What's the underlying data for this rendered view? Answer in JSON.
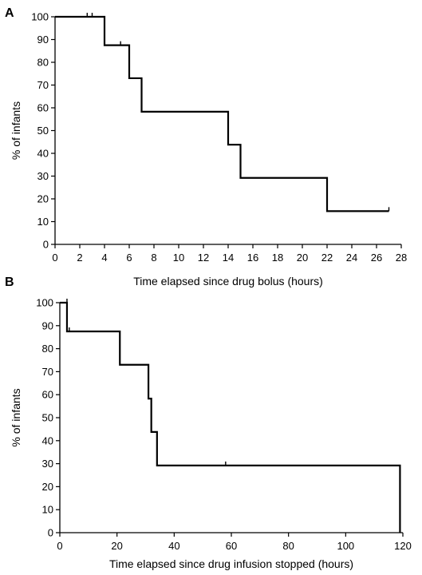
{
  "chart_data": [
    {
      "panel": "A",
      "type": "line",
      "subtype": "kaplan-meier step",
      "xlabel": "Time elapsed since drug bolus (hours)",
      "ylabel": "% of infants",
      "xlim": [
        0,
        28
      ],
      "ylim": [
        0,
        100
      ],
      "xticks": [
        0,
        2,
        4,
        6,
        8,
        10,
        12,
        14,
        16,
        18,
        20,
        22,
        24,
        26,
        28
      ],
      "yticks": [
        0,
        10,
        20,
        30,
        40,
        50,
        60,
        70,
        80,
        90,
        100
      ],
      "grid": false,
      "steps": [
        {
          "x": 0,
          "y": 100
        },
        {
          "x": 4,
          "y": 87.5
        },
        {
          "x": 6,
          "y": 73
        },
        {
          "x": 7,
          "y": 58.3
        },
        {
          "x": 14,
          "y": 43.8
        },
        {
          "x": 15,
          "y": 29.2
        },
        {
          "x": 22,
          "y": 14.6
        }
      ],
      "x_end": 27,
      "censored": [
        {
          "x": 2.6,
          "y": 100
        },
        {
          "x": 3.0,
          "y": 100
        },
        {
          "x": 5.3,
          "y": 87.5
        },
        {
          "x": 27,
          "y": 14.6
        }
      ]
    },
    {
      "panel": "B",
      "type": "line",
      "subtype": "kaplan-meier step",
      "xlabel": "Time elapsed since drug infusion stopped (hours)",
      "ylabel": "% of infants",
      "xlim": [
        0,
        120
      ],
      "ylim": [
        0,
        100
      ],
      "xticks": [
        0,
        20,
        40,
        60,
        80,
        100,
        120
      ],
      "yticks": [
        0,
        10,
        20,
        30,
        40,
        50,
        60,
        70,
        80,
        90,
        100
      ],
      "grid": false,
      "steps": [
        {
          "x": 0,
          "y": 100
        },
        {
          "x": 2.5,
          "y": 87.5
        },
        {
          "x": 21,
          "y": 73
        },
        {
          "x": 31,
          "y": 58.3
        },
        {
          "x": 32,
          "y": 43.8
        },
        {
          "x": 34,
          "y": 29.2
        },
        {
          "x": 119,
          "y": 0
        }
      ],
      "x_end": 119,
      "censored": [
        {
          "x": 2.5,
          "y": 100
        },
        {
          "x": 3.3,
          "y": 87.5
        },
        {
          "x": 58,
          "y": 29.2
        }
      ]
    }
  ]
}
